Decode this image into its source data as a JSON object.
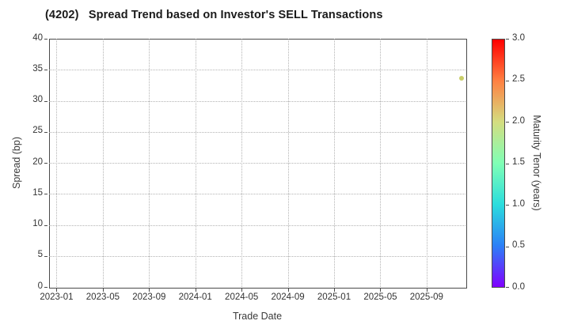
{
  "chart_data": {
    "type": "scatter",
    "title": "(4202)   Spread Trend based on Investor's SELL Transactions",
    "xlabel": "Trade Date",
    "ylabel": "Spread (bp)",
    "x_tick_labels": [
      "2023-01",
      "2023-05",
      "2023-09",
      "2024-01",
      "2024-05",
      "2024-09",
      "2025-01",
      "2025-05",
      "2025-09"
    ],
    "x_tick_interval_months": 4,
    "y_ticks": [
      0,
      5,
      10,
      15,
      20,
      25,
      30,
      35,
      40
    ],
    "ylim": [
      0,
      40
    ],
    "grid": "dotted, both axes",
    "legend_position": "none",
    "points": [
      {
        "trade_date": "2025-12",
        "spread_bp": 33.6,
        "maturity_tenor_years": 1.9,
        "color": "#c9ce69"
      }
    ],
    "colorbar": {
      "label": "Maturity Tenor (years)",
      "min": 0.0,
      "max": 3.0,
      "ticks": [
        "0.0",
        "0.5",
        "1.0",
        "1.5",
        "2.0",
        "2.5",
        "3.0"
      ],
      "colormap": "rainbow",
      "gradient_stops": [
        "#8000ff",
        "#2b80f7",
        "#2bdddd",
        "#80ffb5",
        "#d4dd80",
        "#ff8042",
        "#ff0000"
      ]
    }
  }
}
